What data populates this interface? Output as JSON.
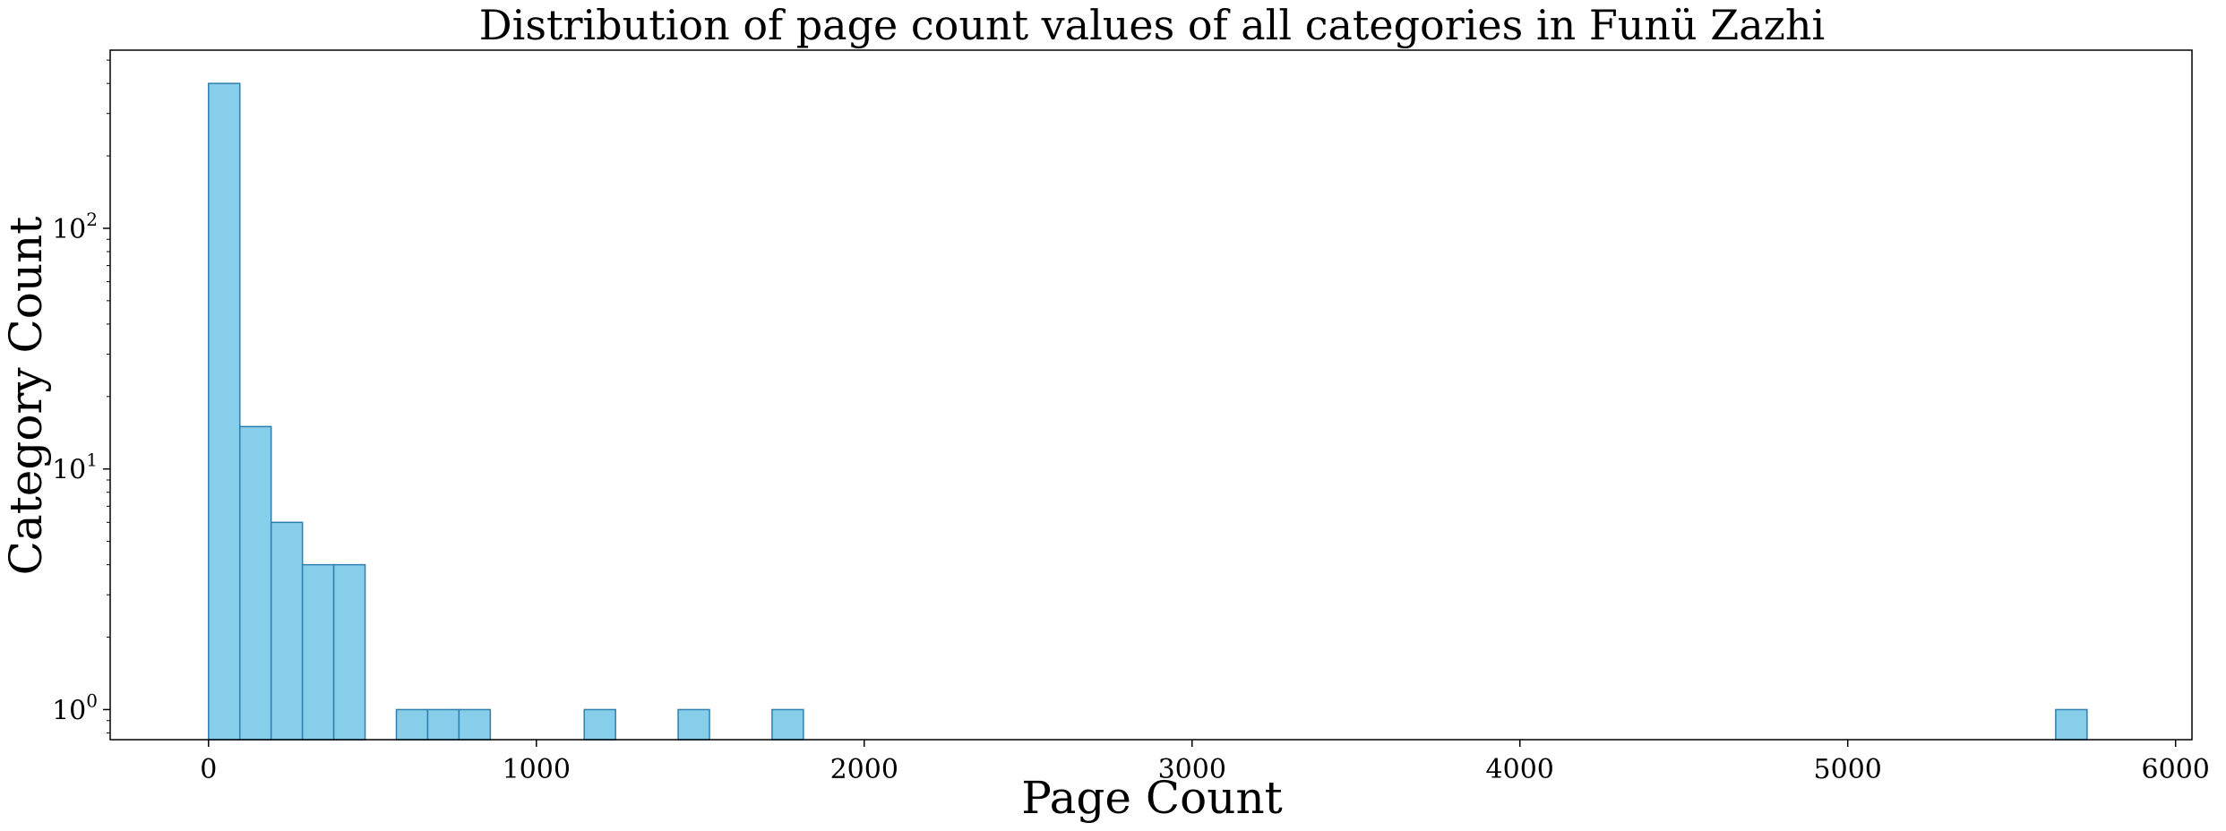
{
  "chart_data": {
    "type": "bar",
    "title": "Distribution of page count values of all categories in Funü Zazhi",
    "xlabel": "Page Count",
    "ylabel": "Category Count",
    "xlim": [
      -300,
      6050
    ],
    "ylim": [
      0.75,
      550
    ],
    "yscale": "log",
    "grid": false,
    "legend": "none",
    "x_ticks": [
      0,
      1000,
      2000,
      3000,
      4000,
      5000,
      6000
    ],
    "x_tick_labels": [
      "0",
      "1000",
      "2000",
      "3000",
      "4000",
      "5000",
      "6000"
    ],
    "y_ticks": [
      1,
      10,
      100
    ],
    "y_tick_labels": [
      {
        "base": "10",
        "exp": "0"
      },
      {
        "base": "10",
        "exp": "1"
      },
      {
        "base": "10",
        "exp": "2"
      }
    ],
    "bar_color": "#87CEEB",
    "bar_edge_color": "#2E7FAD",
    "bins": [
      {
        "start": 0,
        "end": 95.5,
        "value": 400
      },
      {
        "start": 95.5,
        "end": 191,
        "value": 15
      },
      {
        "start": 191,
        "end": 286.5,
        "value": 6
      },
      {
        "start": 286.5,
        "end": 382,
        "value": 4
      },
      {
        "start": 382,
        "end": 477.5,
        "value": 4
      },
      {
        "start": 573,
        "end": 668.5,
        "value": 1
      },
      {
        "start": 668.5,
        "end": 764,
        "value": 1
      },
      {
        "start": 764,
        "end": 859.5,
        "value": 1
      },
      {
        "start": 1146,
        "end": 1241.5,
        "value": 1
      },
      {
        "start": 1432.5,
        "end": 1528,
        "value": 1
      },
      {
        "start": 1719,
        "end": 1814.5,
        "value": 1
      },
      {
        "start": 5634.5,
        "end": 5730,
        "value": 1
      }
    ]
  }
}
